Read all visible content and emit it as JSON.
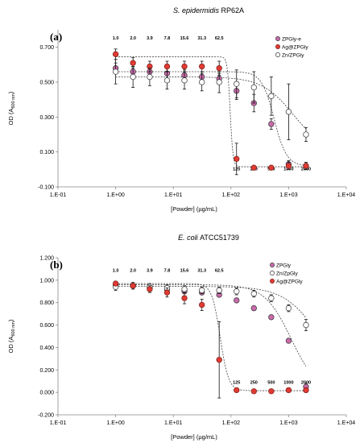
{
  "chart_data": [
    {
      "type": "scatter",
      "title_species": "S. epidermidis",
      "title_strain": "RP62A",
      "panel_label": "(a)",
      "xlabel": "[Powder] (µg/mL)",
      "ylabel_main": "OD (A",
      "ylabel_sub": "600 nm",
      "ylabel_end": ")",
      "xscale": "log",
      "xlim": [
        0.1,
        10000
      ],
      "ylim": [
        -0.1,
        0.8
      ],
      "yticks": [
        -0.1,
        0.1,
        0.3,
        0.5,
        0.7
      ],
      "ytick_labels": [
        "-0.100",
        "0.100",
        "0.300",
        "0.500",
        "0.700"
      ],
      "xticks": [
        0.1,
        1,
        10,
        100,
        1000,
        10000
      ],
      "xtick_labels": [
        "1.E-01",
        "1.E+00",
        "1.E+01",
        "1.E+02",
        "1.E+03",
        "1.E+04"
      ],
      "legend_position": "top-right",
      "top_conc": {
        "y": 0.745,
        "x": [
          1.0,
          2.0,
          3.9,
          7.8,
          15.6,
          31.3,
          62.5
        ],
        "labels": [
          "1.0",
          "2.0",
          "3.9",
          "7.8",
          "15.6",
          "31.3",
          "62.5"
        ]
      },
      "bottom_conc": {
        "y": -0.005,
        "x": [
          125,
          250,
          500,
          1000,
          2000
        ],
        "labels": [
          "125",
          "250",
          "500",
          "1000",
          "2000"
        ]
      },
      "x": [
        1.0,
        2.0,
        3.9,
        7.8,
        15.6,
        31.3,
        62.5,
        125,
        250,
        500,
        1000,
        2000
      ],
      "series": [
        {
          "name": "ZPGly-e",
          "fill": "#c96bab",
          "stroke": "#333333",
          "values": [
            0.58,
            0.56,
            0.56,
            0.55,
            0.54,
            0.53,
            0.52,
            0.45,
            0.38,
            0.26,
            0.03,
            0.02
          ],
          "errors": [
            0.03,
            0.03,
            0.03,
            0.03,
            0.03,
            0.03,
            0.03,
            0.05,
            0.05,
            0.03,
            0.02,
            0.02
          ],
          "fit": {
            "top": 0.56,
            "bottom": 0.02,
            "ec50": 560,
            "hill": 4
          }
        },
        {
          "name": "Ag@ZPGly",
          "fill": "#e03b33",
          "stroke": "#7a1a15",
          "values": [
            0.66,
            0.61,
            0.59,
            0.59,
            0.59,
            0.59,
            0.58,
            0.06,
            0.01,
            0.01,
            0.02,
            0.02
          ],
          "errors": [
            0.03,
            0.03,
            0.03,
            0.03,
            0.03,
            0.03,
            0.04,
            0.09,
            0.01,
            0.01,
            0.02,
            0.02
          ],
          "fit": {
            "top": 0.645,
            "bottom": 0.015,
            "ec50": 97,
            "hill": 18
          }
        },
        {
          "name": "Zn/ZPGly",
          "fill": "#ffffff",
          "stroke": "#333333",
          "values": [
            0.56,
            0.53,
            0.53,
            0.51,
            0.51,
            0.5,
            0.5,
            0.49,
            0.47,
            0.42,
            0.33,
            0.2
          ],
          "errors": [
            0.07,
            0.06,
            0.05,
            0.05,
            0.05,
            0.05,
            0.06,
            0.08,
            0.09,
            0.11,
            0.16,
            0.04
          ],
          "fit": {
            "top": 0.53,
            "bottom": 0.1,
            "ec50": 1200,
            "hill": 1.6
          }
        }
      ]
    },
    {
      "type": "scatter",
      "title_species": "E. coli",
      "title_strain": "ATCC51739",
      "panel_label": "(b)",
      "xlabel": "[Powder] (µg/mL)",
      "ylabel_main": "OD (A",
      "ylabel_sub": "600 nm",
      "ylabel_end": ")",
      "xscale": "log",
      "xlim": [
        0.1,
        10000
      ],
      "ylim": [
        -0.2,
        1.2
      ],
      "yticks": [
        -0.2,
        0.0,
        0.2,
        0.4,
        0.6,
        0.8,
        1.0,
        1.2
      ],
      "ytick_labels": [
        "-0.200",
        "0.000",
        "0.200",
        "0.400",
        "0.600",
        "0.800",
        "1.000",
        "1.200"
      ],
      "xticks": [
        0.1,
        1,
        10,
        100,
        1000,
        10000
      ],
      "xtick_labels": [
        "1.E-01",
        "1.E+00",
        "1.E+01",
        "1.E+02",
        "1.E+03",
        "1.E+04"
      ],
      "legend_position": "top-right",
      "top_conc": {
        "y": 1.075,
        "x": [
          1.0,
          2.0,
          3.9,
          7.8,
          15.6,
          31.3,
          62.5
        ],
        "labels": [
          "1.0",
          "2.0",
          "3.9",
          "7.8",
          "15.6",
          "31.3",
          "62.5"
        ]
      },
      "bottom_conc": {
        "y": 0.075,
        "x": [
          125,
          250,
          500,
          1000,
          2000
        ],
        "labels": [
          "125",
          "250",
          "500",
          "1000",
          "2000"
        ]
      },
      "x": [
        1.0,
        2.0,
        3.9,
        7.8,
        15.6,
        31.3,
        62.5,
        125,
        250,
        500,
        1000,
        2000
      ],
      "series": [
        {
          "name": "ZPGly",
          "fill": "#c96bab",
          "stroke": "#333333",
          "values": [
            0.96,
            0.95,
            0.93,
            0.92,
            0.9,
            0.89,
            0.87,
            0.82,
            0.75,
            0.67,
            0.46,
            0.05
          ],
          "errors": [
            0.02,
            0.02,
            0.02,
            0.02,
            0.02,
            0.02,
            0.02,
            0.02,
            0.02,
            0.02,
            0.02,
            0.03
          ],
          "fit": {
            "top": 0.96,
            "bottom": 0.0,
            "ec50": 1100,
            "hill": 1.9
          }
        },
        {
          "name": "Zn/ZpGly",
          "fill": "#ffffff",
          "stroke": "#333333",
          "values": [
            0.94,
            0.95,
            0.94,
            0.93,
            0.92,
            0.91,
            0.91,
            0.9,
            0.88,
            0.84,
            0.75,
            0.6
          ],
          "errors": [
            0.03,
            0.03,
            0.03,
            0.03,
            0.03,
            0.03,
            0.03,
            0.03,
            0.03,
            0.03,
            0.03,
            0.05
          ],
          "fit": {
            "top": 0.945,
            "bottom": 0.0,
            "ec50": 3700,
            "hill": 1.4
          }
        },
        {
          "name": "Ag@ZPGly",
          "fill": "#e03b33",
          "stroke": "#7a1a15",
          "values": [
            0.97,
            0.95,
            0.92,
            0.89,
            0.84,
            0.78,
            0.29,
            0.02,
            0.01,
            0.01,
            0.02,
            0.02
          ],
          "errors": [
            0.02,
            0.02,
            0.03,
            0.04,
            0.05,
            0.05,
            0.34,
            0.01,
            0.01,
            0.01,
            0.02,
            0.02
          ],
          "fit": {
            "top": 0.97,
            "bottom": 0.015,
            "ec50": 65,
            "hill": 6
          }
        }
      ]
    }
  ]
}
